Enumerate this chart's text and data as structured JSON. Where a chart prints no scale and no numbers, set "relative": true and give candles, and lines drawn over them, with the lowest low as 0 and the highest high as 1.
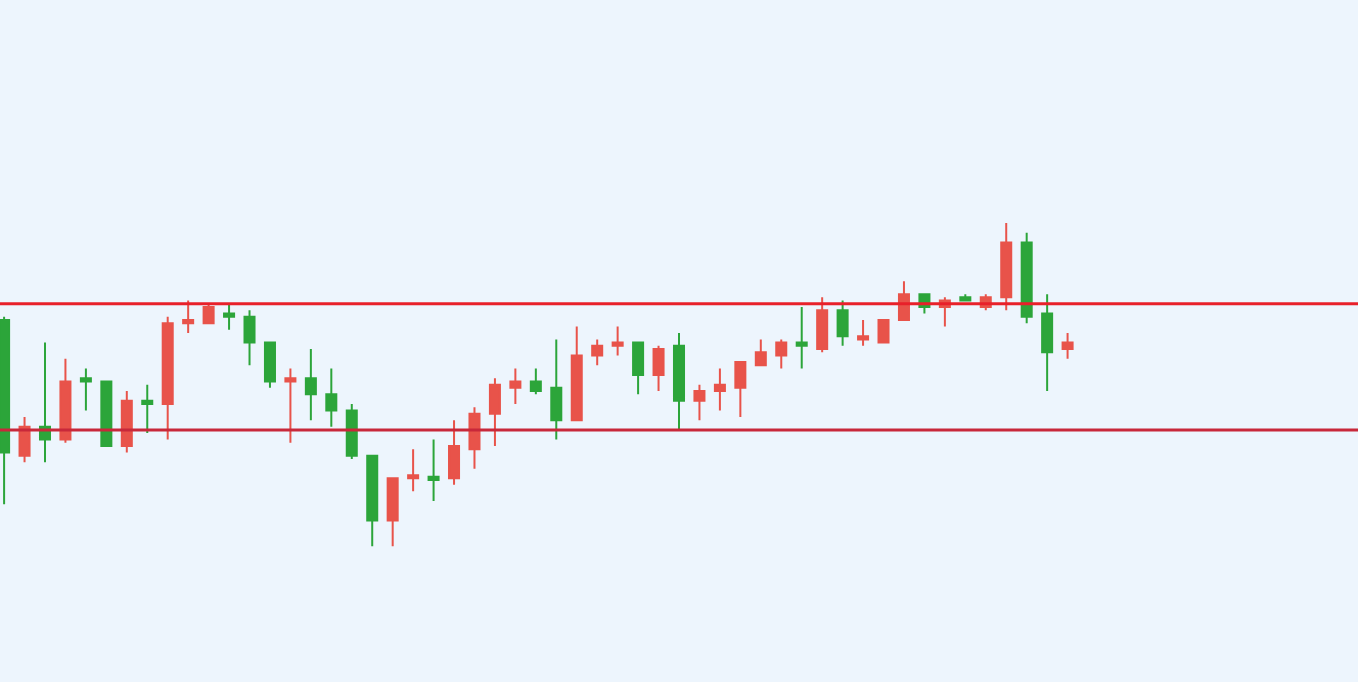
{
  "chart_data": {
    "type": "candlestick",
    "relative": true,
    "tick_labels": false,
    "categories": [
      null,
      null,
      null,
      null,
      null,
      null,
      null,
      null,
      null,
      null,
      null,
      null,
      null,
      null,
      null,
      null,
      null,
      null,
      null,
      null,
      null,
      null,
      null,
      null,
      null,
      null,
      null,
      null,
      null,
      null,
      null,
      null,
      null,
      null,
      null,
      null,
      null,
      null,
      null,
      null,
      null,
      null,
      null,
      null,
      null,
      null,
      null,
      null,
      null,
      null,
      null,
      null,
      null
    ],
    "ohlc": [
      [
        0.7,
        0.71,
        0.13,
        0.29
      ],
      [
        0.28,
        0.4,
        0.26,
        0.37
      ],
      [
        0.37,
        0.63,
        0.26,
        0.33
      ],
      [
        0.33,
        0.58,
        0.32,
        0.51
      ],
      [
        0.52,
        0.55,
        0.42,
        0.51
      ],
      [
        0.51,
        0.51,
        0.31,
        0.31
      ],
      [
        0.31,
        0.48,
        0.29,
        0.45
      ],
      [
        0.45,
        0.5,
        0.35,
        0.44
      ],
      [
        0.44,
        0.71,
        0.33,
        0.69
      ],
      [
        0.69,
        0.76,
        0.66,
        0.7
      ],
      [
        0.69,
        0.75,
        0.69,
        0.74
      ],
      [
        0.72,
        0.75,
        0.67,
        0.71
      ],
      [
        0.71,
        0.73,
        0.56,
        0.63
      ],
      [
        0.63,
        0.63,
        0.49,
        0.51
      ],
      [
        0.51,
        0.55,
        0.32,
        0.52
      ],
      [
        0.52,
        0.61,
        0.39,
        0.47
      ],
      [
        0.47,
        0.55,
        0.37,
        0.42
      ],
      [
        0.42,
        0.44,
        0.27,
        0.28
      ],
      [
        0.28,
        0.28,
        0.0,
        0.08
      ],
      [
        0.08,
        0.21,
        0.0,
        0.21
      ],
      [
        0.21,
        0.3,
        0.17,
        0.22
      ],
      [
        0.215,
        0.33,
        0.14,
        0.205
      ],
      [
        0.21,
        0.39,
        0.19,
        0.31
      ],
      [
        0.3,
        0.43,
        0.24,
        0.41
      ],
      [
        0.41,
        0.52,
        0.31,
        0.5
      ],
      [
        0.49,
        0.55,
        0.44,
        0.51
      ],
      [
        0.51,
        0.55,
        0.47,
        0.48
      ],
      [
        0.49,
        0.64,
        0.33,
        0.39
      ],
      [
        0.39,
        0.68,
        0.39,
        0.59
      ],
      [
        0.59,
        0.64,
        0.56,
        0.62
      ],
      [
        0.62,
        0.68,
        0.59,
        0.63
      ],
      [
        0.63,
        0.63,
        0.47,
        0.53
      ],
      [
        0.53,
        0.62,
        0.48,
        0.61
      ],
      [
        0.62,
        0.66,
        0.36,
        0.45
      ],
      [
        0.45,
        0.5,
        0.39,
        0.48
      ],
      [
        0.48,
        0.55,
        0.42,
        0.5
      ],
      [
        0.49,
        0.57,
        0.4,
        0.57
      ],
      [
        0.56,
        0.64,
        0.56,
        0.6
      ],
      [
        0.59,
        0.64,
        0.55,
        0.63
      ],
      [
        0.63,
        0.74,
        0.55,
        0.62
      ],
      [
        0.61,
        0.77,
        0.6,
        0.73
      ],
      [
        0.73,
        0.76,
        0.62,
        0.65
      ],
      [
        0.64,
        0.7,
        0.62,
        0.65
      ],
      [
        0.63,
        0.7,
        0.63,
        0.7
      ],
      [
        0.7,
        0.82,
        0.7,
        0.78
      ],
      [
        0.78,
        0.78,
        0.72,
        0.74
      ],
      [
        0.74,
        0.77,
        0.68,
        0.76
      ],
      [
        0.77,
        0.78,
        0.76,
        0.76
      ],
      [
        0.74,
        0.78,
        0.73,
        0.77
      ],
      [
        0.77,
        1.0,
        0.73,
        0.94
      ],
      [
        0.94,
        0.97,
        0.69,
        0.71
      ],
      [
        0.72,
        0.78,
        0.48,
        0.6
      ],
      [
        0.61,
        0.66,
        0.58,
        0.63
      ]
    ],
    "ref_lines": [
      {
        "axis": "y",
        "value": 0.75,
        "color": "#e8202a"
      },
      {
        "axis": "y",
        "value": 0.36,
        "color": "#c8283a"
      }
    ]
  }
}
